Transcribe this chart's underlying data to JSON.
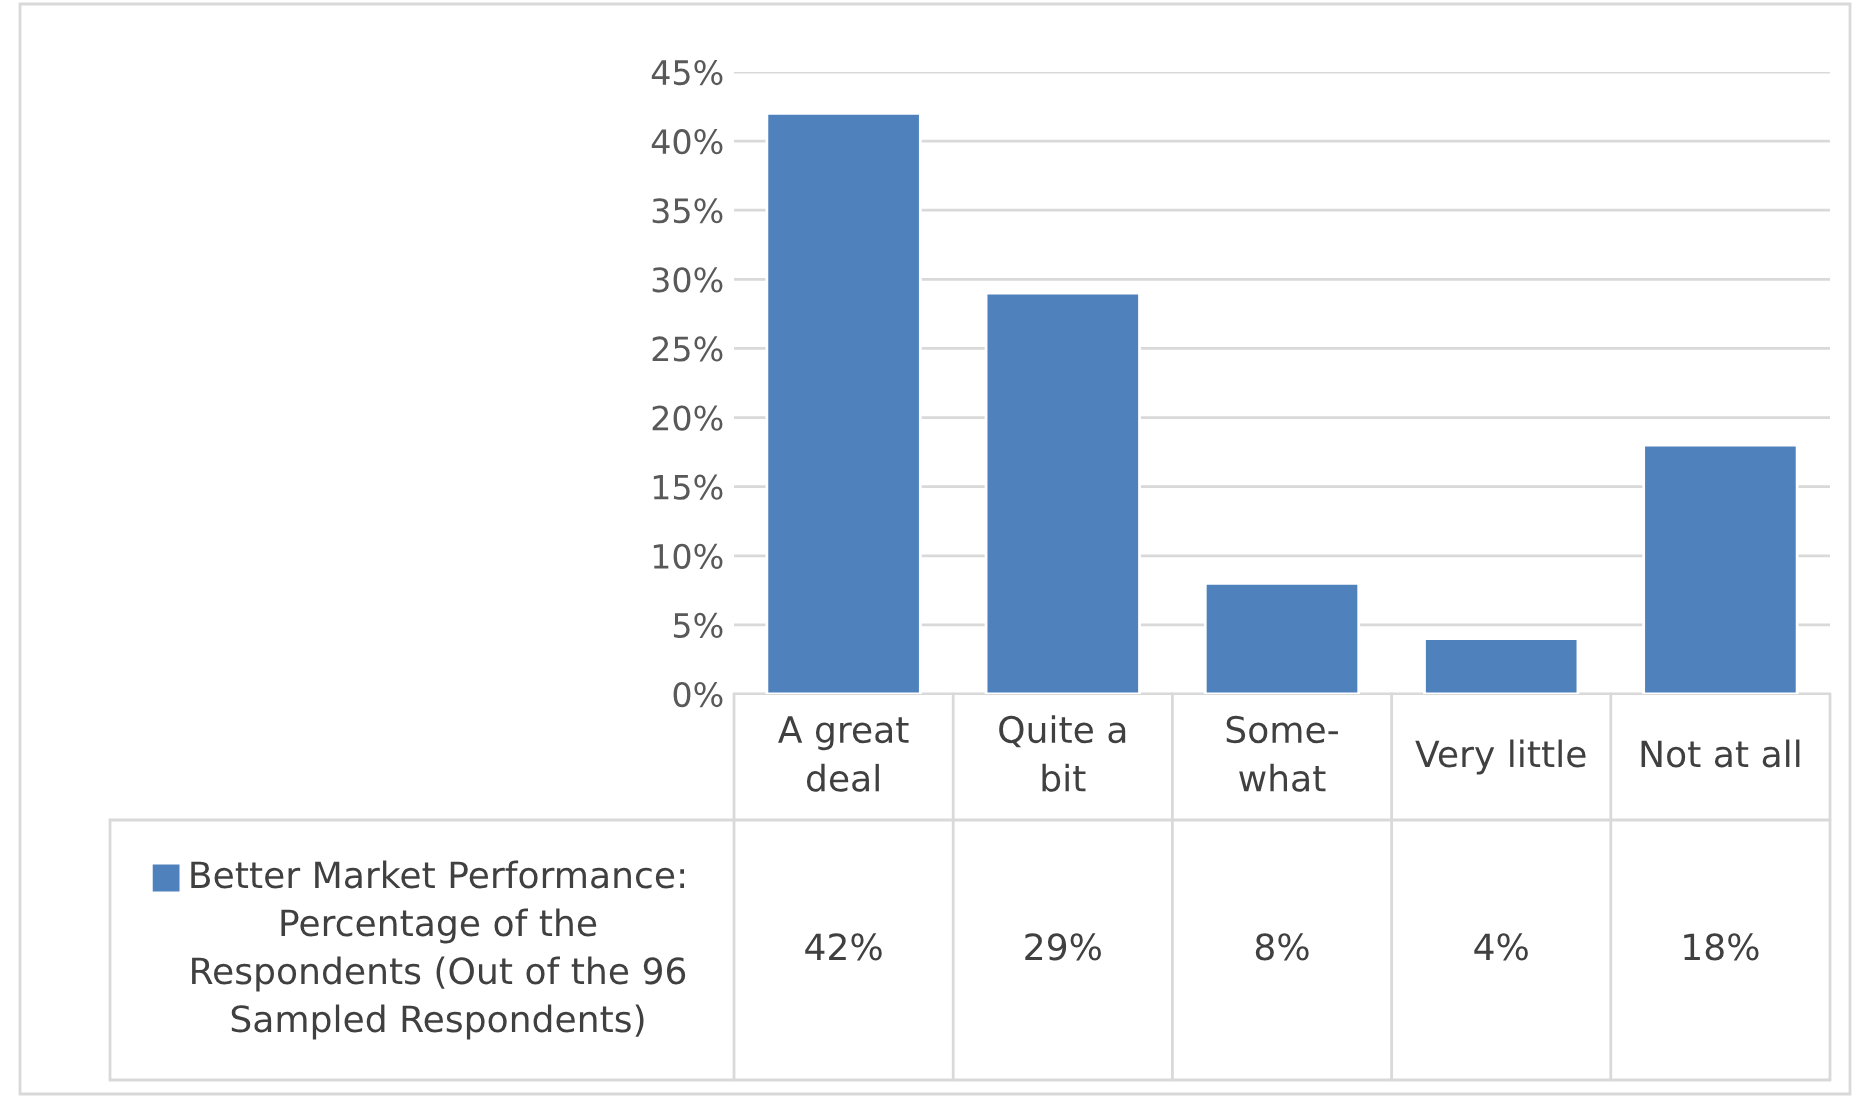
{
  "chart_data": {
    "type": "bar",
    "categories": [
      "A great\ndeal",
      "Quite a\nbit",
      "Some-\nwhat",
      "Very little",
      "Not at all"
    ],
    "series": [
      {
        "name": "Better Market Performance: Percentage of the Respondents (Out of the 96 Sampled Respondents)",
        "color": "#4f81bd",
        "values": [
          42,
          29,
          8,
          4,
          18
        ],
        "value_labels": [
          "42%",
          "29%",
          "8%",
          "4%",
          "18%"
        ]
      }
    ],
    "ylim": [
      0,
      45
    ],
    "yticks": [
      {
        "value": 0,
        "label": "0%"
      },
      {
        "value": 5,
        "label": "5%"
      },
      {
        "value": 10,
        "label": "10%"
      },
      {
        "value": 15,
        "label": "15%"
      },
      {
        "value": 20,
        "label": "20%"
      },
      {
        "value": 25,
        "label": "25%"
      },
      {
        "value": 30,
        "label": "30%"
      },
      {
        "value": 35,
        "label": "35%"
      },
      {
        "value": 40,
        "label": "40%"
      },
      {
        "value": 45,
        "label": "45%"
      }
    ],
    "grid": "y",
    "legend": "bottom left"
  }
}
